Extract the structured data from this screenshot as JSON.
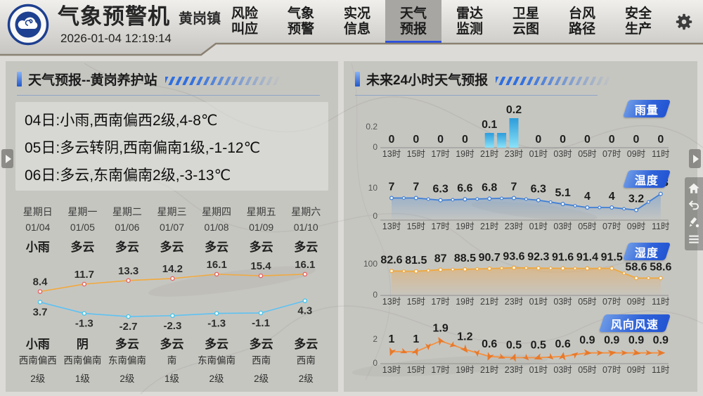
{
  "header": {
    "title": "气象预警机",
    "subtitle": "黄岗镇",
    "datetime": "2026-01-04 12:19:14",
    "logo_icon": "jiangxi-meteorology-logo",
    "settings_icon": "gear-icon",
    "nav": [
      {
        "id": "risk-call",
        "line1": "风险",
        "line2": "叫应",
        "active": false
      },
      {
        "id": "weather-warning",
        "line1": "气象",
        "line2": "预警",
        "active": false
      },
      {
        "id": "live-info",
        "line1": "实况",
        "line2": "信息",
        "active": false
      },
      {
        "id": "weather-forecast",
        "line1": "天气",
        "line2": "预报",
        "active": true
      },
      {
        "id": "radar-monitor",
        "line1": "雷达",
        "line2": "监测",
        "active": false
      },
      {
        "id": "satellite-cloud",
        "line1": "卫星",
        "line2": "云图",
        "active": false
      },
      {
        "id": "typhoon-track",
        "line1": "台风",
        "line2": "路径",
        "active": false
      },
      {
        "id": "safety-production",
        "line1": "安全",
        "line2": "生产",
        "active": false
      }
    ],
    "active_tab_underline_color": "#2b50dd"
  },
  "left_panel": {
    "title": "天气预报--黄岗养护站",
    "forecast_lines": [
      "04日:小雨,西南偏西2级,4-8℃",
      "05日:多云转阴,西南偏南1级,-1-12℃",
      "06日:多云,东南偏南2级,-3-13℃"
    ],
    "week": {
      "days": [
        "星期日",
        "星期一",
        "星期二",
        "星期三",
        "星期四",
        "星期五",
        "星期六"
      ],
      "dates": [
        "01/04",
        "01/05",
        "01/06",
        "01/07",
        "01/08",
        "01/09",
        "01/10"
      ],
      "day_weather": [
        "小雨",
        "多云",
        "多云",
        "多云",
        "多云",
        "多云",
        "多云"
      ],
      "night_weather": [
        "小雨",
        "阴",
        "多云",
        "多云",
        "多云",
        "多云",
        "多云"
      ],
      "wind_direction": [
        "西南偏西",
        "西南偏南",
        "东南偏南",
        "南",
        "东南偏南",
        "西南",
        "西南"
      ],
      "wind_level": [
        "2级",
        "1级",
        "2级",
        "1级",
        "2级",
        "2级",
        "2级"
      ]
    }
  },
  "right_panel": {
    "title": "未来24小时天气预报",
    "hours": [
      "13时",
      "15时",
      "17时",
      "19时",
      "21时",
      "23时",
      "01时",
      "03时",
      "05时",
      "07时",
      "09时",
      "11时"
    ]
  },
  "side_tools": {
    "icons": [
      "home-icon",
      "undo-icon",
      "annotate-icon",
      "menu-icon"
    ],
    "edge_arrows": [
      "panel-prev-arrow",
      "panel-next-arrow"
    ]
  },
  "colors": {
    "badge_blue": "#2f62da",
    "high_temp_line": "#f2a93c",
    "low_temp_line": "#5ec2f2",
    "rain_bar_top": "#2d9cdb",
    "rain_bar_bottom": "#8ae2f8",
    "temp24_line": "#3f7fd6",
    "humidity_line": "#f0a83c",
    "wind_line": "#f49040"
  },
  "chart_data": [
    {
      "id": "weekly-temperature",
      "type": "line",
      "categories": [
        "01/04",
        "01/05",
        "01/06",
        "01/07",
        "01/08",
        "01/09",
        "01/10"
      ],
      "series": [
        {
          "name": "high",
          "values": [
            8.4,
            11.7,
            13.3,
            14.2,
            16.1,
            15.4,
            16.1
          ],
          "color": "#f2a93c",
          "marker_color": "#e86464"
        },
        {
          "name": "low",
          "values": [
            3.7,
            -1.3,
            -2.7,
            -2.3,
            -1.3,
            -1.1,
            4.3
          ],
          "color": "#5ec2f2",
          "marker_color": "#44c6ee"
        }
      ],
      "grid": false,
      "legend": "none"
    },
    {
      "id": "rain-24h",
      "type": "bar",
      "badge": "雨量",
      "categories": [
        "13时",
        "15时",
        "17时",
        "19时",
        "21时",
        "23时",
        "01时",
        "03时",
        "05时",
        "07时",
        "09时",
        "11时"
      ],
      "tick_values": [
        0,
        0,
        0,
        0,
        0.1,
        0.2,
        0,
        0,
        0,
        0,
        0,
        0
      ],
      "bars": [
        {
          "pos": 4,
          "value": 0.1,
          "label": "0.1"
        },
        {
          "pos": 4.5,
          "value": 0.1,
          "label": ""
        },
        {
          "pos": 5,
          "value": 0.2,
          "label": "0.2"
        }
      ],
      "ylim": [
        0,
        0.2
      ],
      "yticks": [
        "0.2",
        "0"
      ]
    },
    {
      "id": "temperature-24h",
      "type": "area",
      "badge": "温度",
      "categories": [
        "13时",
        "15时",
        "17时",
        "19时",
        "21时",
        "23时",
        "01时",
        "03时",
        "05时",
        "07时",
        "09时",
        "11时"
      ],
      "values": [
        7,
        7,
        6.3,
        6.6,
        6.8,
        7,
        6.3,
        5.1,
        4,
        4,
        3.2,
        8.3
      ],
      "ylim": [
        0,
        10
      ],
      "yticks": [
        "10",
        "0"
      ]
    },
    {
      "id": "humidity-24h",
      "type": "area",
      "badge": "湿度",
      "categories": [
        "13时",
        "15时",
        "17时",
        "19时",
        "21时",
        "23时",
        "01时",
        "03时",
        "05时",
        "07时",
        "09时",
        "11时"
      ],
      "values": [
        82.6,
        81.5,
        87,
        88.5,
        90.7,
        93.6,
        92.3,
        91.6,
        91.4,
        91.5,
        58.6,
        58.6
      ],
      "ylim": [
        0,
        100
      ],
      "yticks": [
        "100",
        "0"
      ]
    },
    {
      "id": "wind-24h",
      "type": "line",
      "badge": "风向风速",
      "categories": [
        "13时",
        "15时",
        "17时",
        "19时",
        "21时",
        "23时",
        "01时",
        "03时",
        "05时",
        "07时",
        "09时",
        "11时"
      ],
      "values": [
        1,
        1,
        1.9,
        1.2,
        0.6,
        0.5,
        0.5,
        0.6,
        0.9,
        0.9,
        0.9,
        0.9
      ],
      "arrow_angles_deg": [
        200,
        25,
        330,
        140,
        205,
        20,
        250,
        10,
        95,
        80,
        100,
        90
      ],
      "ylim": [
        0,
        2
      ],
      "yticks": [
        "2",
        "0"
      ]
    }
  ]
}
